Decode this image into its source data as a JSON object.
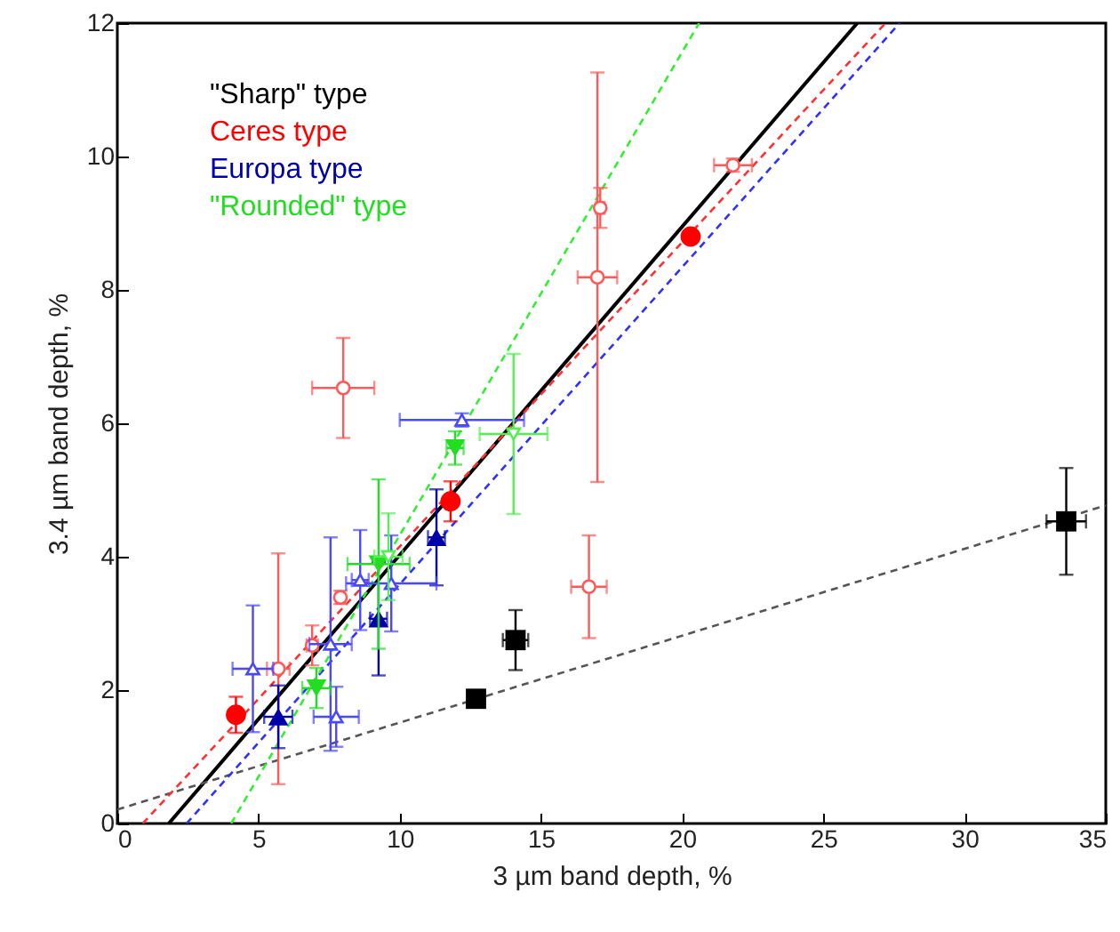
{
  "chart_data": {
    "type": "scatter",
    "xlabel": "3 µm band depth, %",
    "ylabel": "3.4 µm band depth, %",
    "xlim": [
      0,
      35
    ],
    "ylim": [
      0,
      12
    ],
    "xticks": [
      0,
      5,
      10,
      15,
      20,
      25,
      30,
      35
    ],
    "yticks": [
      0,
      2,
      4,
      6,
      8,
      10,
      12
    ],
    "grid": false,
    "legend": "top left",
    "series": [
      {
        "name": "\"Sharp\" type",
        "color": "#000000",
        "marker": "square",
        "x": [
          12.7,
          14.1,
          33.6
        ],
        "values": [
          1.87,
          2.75,
          4.53
        ],
        "errors": [
          0.08,
          0.45,
          0.8
        ],
        "xerrors": [
          0.3,
          0.45,
          0.7
        ]
      },
      {
        "name": "Ceres type",
        "color": "#ff0000",
        "marker": "circle",
        "x": [
          4.2,
          11.8,
          20.3
        ],
        "values": [
          1.63,
          4.83,
          8.8
        ],
        "errors": [
          0.27,
          0.3,
          null
        ],
        "xerrors": [
          null,
          null,
          null
        ]
      },
      {
        "color": "#ff5a5a",
        "marker": "circle",
        "x": [
          8.0,
          17.0,
          17.1,
          21.8,
          16.7,
          5.7,
          6.9,
          7.9
        ],
        "values": [
          6.53,
          8.19,
          9.23,
          9.87,
          3.55,
          2.32,
          2.67,
          3.39
        ],
        "errors": [
          0.75,
          3.07,
          0.3,
          0.1,
          0.77,
          1.73,
          0.3,
          0.1
        ],
        "xerrors": [
          1.1,
          0.7,
          0.15,
          0.67,
          0.63,
          0.4,
          0.2,
          0.15
        ]
      },
      {
        "name": "Europa type",
        "color": "#0000aa",
        "marker": "triangle",
        "x": [
          5.7,
          9.25,
          11.3
        ],
        "values": [
          1.6,
          3.07,
          4.29
        ],
        "errors": [
          0.47,
          0.85,
          0.72
        ],
        "xerrors": [
          0.5,
          0.3,
          0.3
        ]
      },
      {
        "color": "#4848ff",
        "marker": "triangle",
        "x": [
          4.8,
          7.55,
          7.75,
          8.6,
          9.7,
          12.2
        ],
        "values": [
          2.32,
          2.69,
          1.6,
          3.65,
          3.6,
          6.05
        ],
        "errors": [
          0.95,
          1.6,
          0.45,
          0.75,
          0.72,
          0.1
        ],
        "xerrors": [
          0.72,
          0.75,
          0.8,
          0.3,
          1.6,
          2.2
        ]
      },
      {
        "name": "\"Rounded\" type",
        "color": "#22dd22",
        "marker": "triangle-down",
        "x": [
          7.05,
          9.25,
          11.96
        ],
        "values": [
          2.03,
          3.89,
          5.63
        ],
        "errors": [
          0.3,
          1.27,
          0.25
        ],
        "xerrors": [
          0.5,
          1.1,
          0.3
        ]
      },
      {
        "color": "#55ee55",
        "marker": "triangle-down",
        "x": [
          14.03,
          9.6
        ],
        "values": [
          5.84,
          4.0
        ],
        "errors": [
          1.2,
          0.65
        ],
        "xerrors": [
          1.2,
          0.5
        ]
      },
      {
        "type": "line",
        "color": "#000000",
        "line_style": "solid",
        "x": [
          1.82,
          26.2
        ],
        "values": [
          0,
          12
        ]
      },
      {
        "type": "line",
        "color": "#555555",
        "line_style": "dashed",
        "x": [
          0,
          35
        ],
        "values": [
          0.21,
          4.77
        ]
      },
      {
        "type": "line",
        "color": "#ff3030",
        "line_style": "dashed",
        "x": [
          0.9,
          27.2
        ],
        "values": [
          0,
          12
        ]
      },
      {
        "type": "line",
        "color": "#3030ff",
        "line_style": "dashed",
        "x": [
          2.45,
          27.7
        ],
        "values": [
          0,
          12
        ]
      },
      {
        "type": "line",
        "color": "#33ee33",
        "line_style": "dashed",
        "x": [
          4.03,
          20.6
        ],
        "values": [
          0,
          12
        ]
      }
    ]
  }
}
